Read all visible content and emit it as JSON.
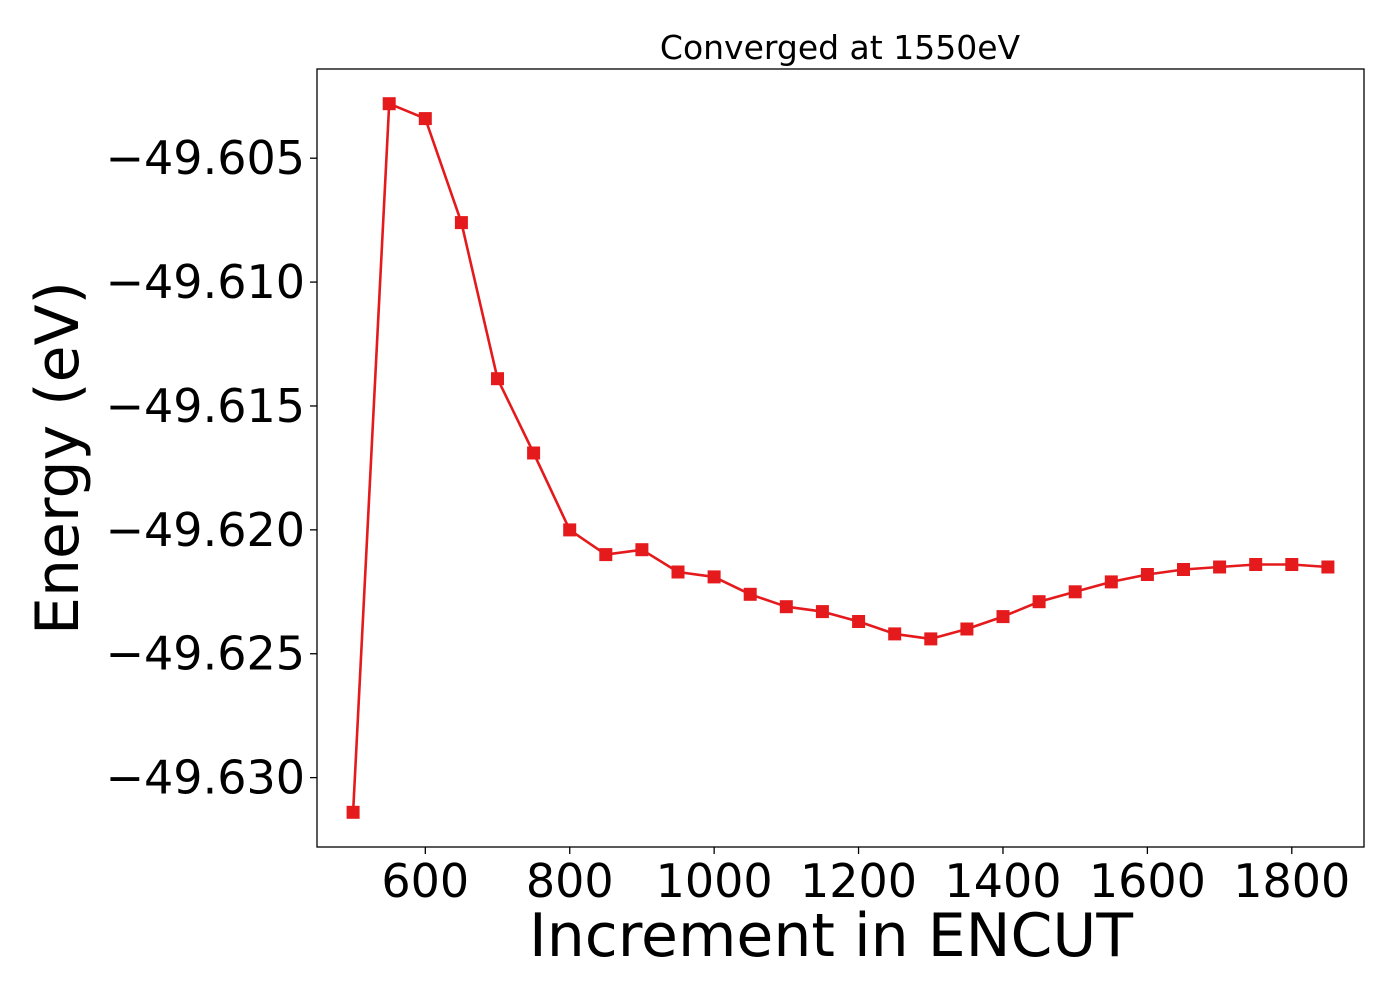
{
  "chart_data": {
    "type": "line",
    "title": "Converged at 1550eV",
    "xlabel": "Increment in ENCUT",
    "ylabel": "Energy (eV)",
    "xlim": [
      450,
      1900
    ],
    "ylim": [
      -49.6328,
      -49.6014
    ],
    "xticks": [
      {
        "value": 600,
        "label": "600"
      },
      {
        "value": 800,
        "label": "800"
      },
      {
        "value": 1000,
        "label": "1000"
      },
      {
        "value": 1200,
        "label": "1200"
      },
      {
        "value": 1400,
        "label": "1400"
      },
      {
        "value": 1600,
        "label": "1600"
      },
      {
        "value": 1800,
        "label": "1800"
      }
    ],
    "yticks": [
      {
        "value": -49.605,
        "label": "−49.605"
      },
      {
        "value": -49.61,
        "label": "−49.610"
      },
      {
        "value": -49.615,
        "label": "−49.615"
      },
      {
        "value": -49.62,
        "label": "−49.620"
      },
      {
        "value": -49.625,
        "label": "−49.625"
      },
      {
        "value": -49.63,
        "label": "−49.630"
      }
    ],
    "grid": false,
    "legend": "none",
    "series": [
      {
        "color": "#e41a1c",
        "marker": "square",
        "x": [
          500,
          550,
          600,
          650,
          700,
          750,
          800,
          850,
          900,
          950,
          1000,
          1050,
          1100,
          1150,
          1200,
          1250,
          1300,
          1350,
          1400,
          1450,
          1500,
          1550,
          1600,
          1650,
          1700,
          1750,
          1800,
          1850
        ],
        "y": [
          -49.6314,
          -49.6028,
          -49.6034,
          -49.6076,
          -49.6139,
          -49.6169,
          -49.62,
          -49.621,
          -49.6208,
          -49.6217,
          -49.6219,
          -49.6226,
          -49.6231,
          -49.6233,
          -49.6237,
          -49.6242,
          -49.6244,
          -49.624,
          -49.6235,
          -49.6229,
          -49.6225,
          -49.6221,
          -49.6218,
          -49.6216,
          -49.6215,
          -49.6214,
          -49.6214,
          -49.6215
        ]
      }
    ]
  }
}
